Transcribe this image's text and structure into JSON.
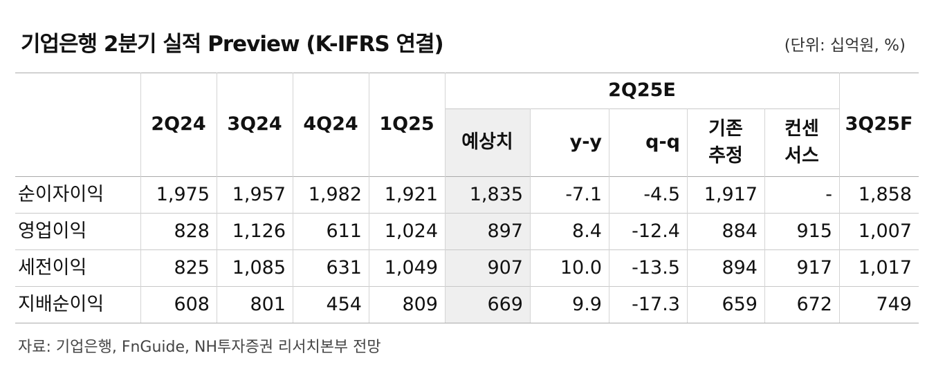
{
  "header": {
    "title": "기업은행 2분기 실적 Preview (K-IFRS 연결)",
    "unit": "(단위: 십억원, %)"
  },
  "table": {
    "columns": [
      "2Q24",
      "3Q24",
      "4Q24",
      "1Q25"
    ],
    "group": "2Q25E",
    "subcolumns": [
      "예상치",
      "y-y",
      "q-q",
      "기존\n추정",
      "컨센\n서스"
    ],
    "last_column": "3Q25F",
    "rows": [
      {
        "label": "순이자이익",
        "values": [
          "1,975",
          "1,957",
          "1,982",
          "1,921",
          "1,835",
          "-7.1",
          "-4.5",
          "1,917",
          "-",
          "1,858"
        ]
      },
      {
        "label": "영업이익",
        "values": [
          "828",
          "1,126",
          "611",
          "1,024",
          "897",
          "8.4",
          "-12.4",
          "884",
          "915",
          "1,007"
        ]
      },
      {
        "label": "세전이익",
        "values": [
          "825",
          "1,085",
          "631",
          "1,049",
          "907",
          "10.0",
          "-13.5",
          "894",
          "917",
          "1,017"
        ]
      },
      {
        "label": "지배순이익",
        "values": [
          "608",
          "801",
          "454",
          "809",
          "669",
          "9.9",
          "-17.3",
          "659",
          "672",
          "749"
        ]
      }
    ]
  },
  "footer": {
    "source": "자료: 기업은행, FnGuide, NH투자증권 리서치본부 전망"
  }
}
